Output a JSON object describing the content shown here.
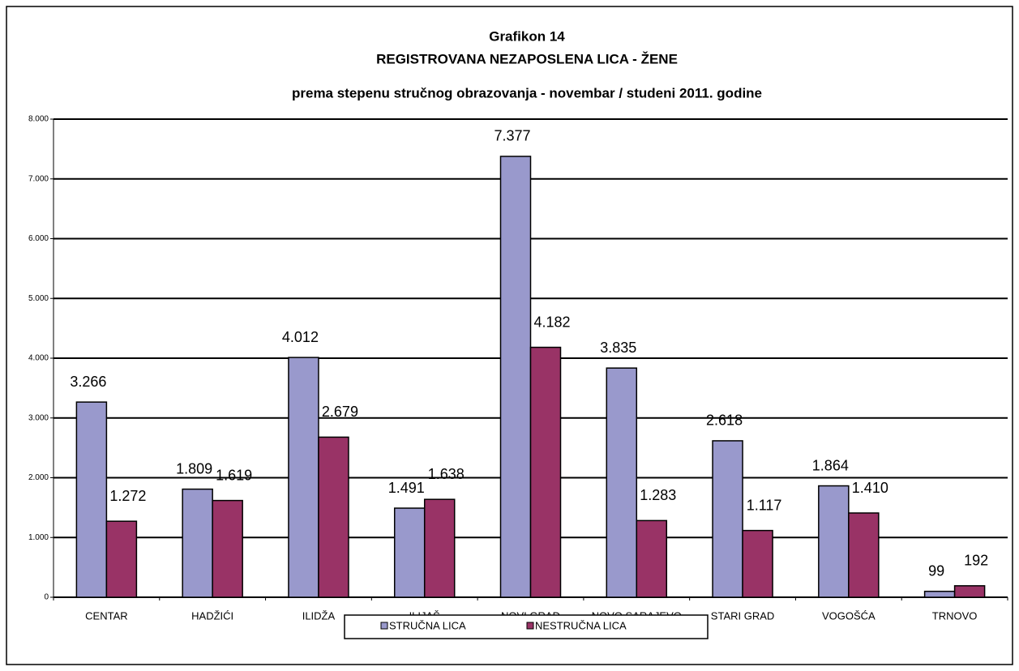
{
  "chart_data": {
    "type": "bar",
    "title": [
      "Grafikon 14",
      "REGISTROVANA NEZAPOSLENA LICA - ŽENE",
      "prema stepenu stručnog obrazovanja - novembar / studeni  2011. godine"
    ],
    "categories": [
      "CENTAR",
      "HADŽIĆI",
      "ILIDŽA",
      "ILIJAŠ",
      "NOVI GRAD",
      "NOVO SARAJEVO",
      "STARI GRAD",
      "VOGOŠĆA",
      "TRNOVO"
    ],
    "series": [
      {
        "name": "STRUČNA LICA",
        "color": "#9999cc",
        "values": [
          3266,
          1809,
          4012,
          1491,
          7377,
          3835,
          2618,
          1864,
          99
        ],
        "value_labels": [
          "3.266",
          "1.809",
          "4.012",
          "1.491",
          "7.377",
          "3.835",
          "2.618",
          "1.864",
          "99"
        ]
      },
      {
        "name": "NESTRUČNA LICA",
        "color": "#993366",
        "values": [
          1272,
          1619,
          2679,
          1638,
          4182,
          1283,
          1117,
          1410,
          192
        ],
        "value_labels": [
          "1.272",
          "1.619",
          "2.679",
          "1.638",
          "4.182",
          "1.283",
          "1.117",
          "1.410",
          "192"
        ]
      }
    ],
    "ylim": [
      0,
      8000
    ],
    "yticks": [
      0,
      {
        "value": 1000,
        "label": "1.000"
      },
      {
        "value": 2000,
        "label": "2.000"
      },
      {
        "value": 3000,
        "label": "3.000"
      },
      {
        "value": 4000,
        "label": "4.000"
      },
      {
        "value": 5000,
        "label": "5.000"
      },
      {
        "value": 6000,
        "label": "6.000"
      },
      {
        "value": 7000,
        "label": "7.000"
      },
      {
        "value": 8000,
        "label": "8.000"
      }
    ],
    "grid": true,
    "legend": "bottom"
  }
}
